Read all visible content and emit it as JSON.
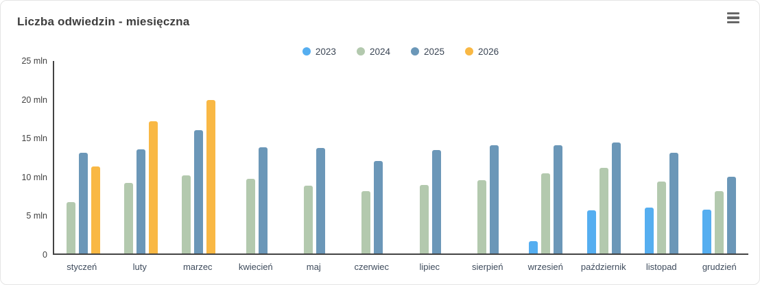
{
  "card": {
    "title": "Liczba odwiedzin - miesięczna"
  },
  "chart_data": {
    "type": "bar",
    "title": "Liczba odwiedzin - miesięczna",
    "categories": [
      "styczeń",
      "luty",
      "marzec",
      "kwiecień",
      "maj",
      "czerwiec",
      "lipiec",
      "sierpień",
      "wrzesień",
      "październik",
      "listopad",
      "grudzień"
    ],
    "series": [
      {
        "name": "2023",
        "color": "#55aef0",
        "values": [
          null,
          null,
          null,
          null,
          null,
          null,
          null,
          null,
          1.6,
          5.6,
          6.0,
          5.7
        ]
      },
      {
        "name": "2024",
        "color": "#b3c9ae",
        "values": [
          6.7,
          9.2,
          10.1,
          9.7,
          8.8,
          8.1,
          8.9,
          9.5,
          10.4,
          11.1,
          9.3,
          8.1
        ]
      },
      {
        "name": "2025",
        "color": "#6b97b8",
        "values": [
          13.1,
          13.5,
          16.0,
          13.8,
          13.7,
          12.0,
          13.4,
          14.1,
          14.1,
          14.4,
          13.1,
          10.0
        ]
      },
      {
        "name": "2026",
        "color": "#f9b844",
        "values": [
          11.3,
          17.2,
          19.9,
          null,
          null,
          null,
          null,
          null,
          null,
          null,
          null,
          null
        ]
      }
    ],
    "unit": "mln",
    "ylim": [
      0,
      25
    ],
    "yticks": [
      {
        "value": 0,
        "label": "0"
      },
      {
        "value": 5,
        "label": "5 mln"
      },
      {
        "value": 10,
        "label": "10 mln"
      },
      {
        "value": 15,
        "label": "15 mln"
      },
      {
        "value": 20,
        "label": "20 mln"
      },
      {
        "value": 25,
        "label": "25 mln"
      }
    ],
    "grid": false,
    "legend_position": "top-center"
  }
}
